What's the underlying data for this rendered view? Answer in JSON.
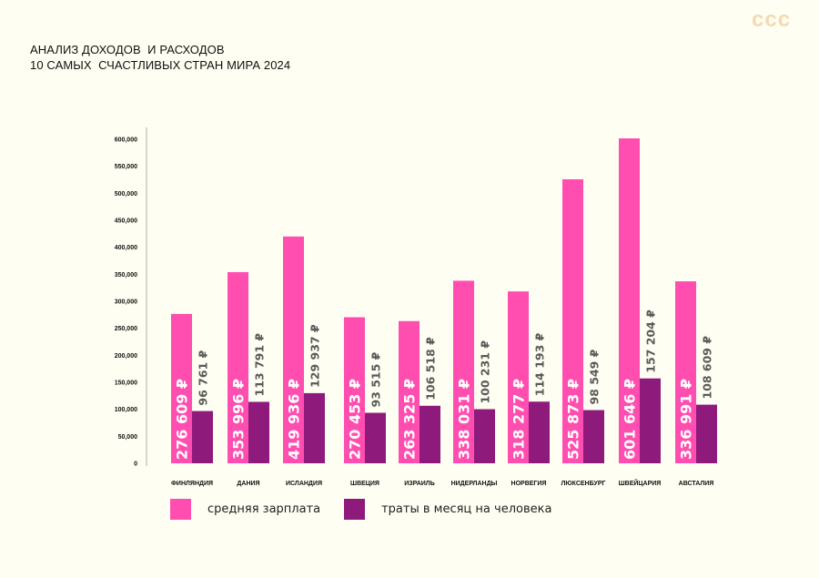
{
  "header": {
    "title_line1": "АНАЛИЗ ДОХОДОВ  И РАСХОДОВ",
    "title_line2": "10 САМЫХ  СЧАСТЛИВЫХ СТРАН МИРА 2024",
    "logo": "ccc"
  },
  "colors": {
    "salary": "#ff4db0",
    "spend": "#8e1a7c",
    "logo": "#f6d9b2",
    "background": "#fefef2"
  },
  "chart_data": {
    "type": "bar",
    "title": "АНАЛИЗ ДОХОДОВ  И РАСХОДОВ 10 САМЫХ  СЧАСТЛИВЫХ СТРАН МИРА 2024",
    "xlabel": "",
    "ylabel": "",
    "ylim": [
      0,
      600000
    ],
    "yticks": [
      0,
      50000,
      100000,
      150000,
      200000,
      250000,
      300000,
      350000,
      400000,
      450000,
      500000,
      550000,
      600000
    ],
    "ytick_labels": [
      "0",
      "50,000",
      "100,000",
      "150,000",
      "200,000",
      "250,000",
      "300,000",
      "350,000",
      "400,000",
      "450,000",
      "500,000",
      "550,000",
      "600,000"
    ],
    "grid": false,
    "legend_position": "bottom-left",
    "categories": [
      "ФИНЛЯНДИЯ",
      "ДАНИЯ",
      "ИСЛАНДИЯ",
      "ШВЕЦИЯ",
      "ИЗРАИЛЬ",
      "НИДЕРЛАНДЫ",
      "НОРВЕГИЯ",
      "ЛЮКСЕНБУРГ",
      "ШВЕЙЦАРИЯ",
      "АВСТАЛИЯ"
    ],
    "series": [
      {
        "name": "средняя зарплата",
        "values": [
          276609,
          353996,
          419936,
          270453,
          263325,
          338031,
          318277,
          525873,
          601646,
          336991
        ],
        "labels": [
          "276 609 ₽",
          "353 996 ₽",
          "419 936 ₽",
          "270 453 ₽",
          "263 325 ₽",
          "338 031 ₽",
          "318 277 ₽",
          "525 873 ₽",
          "601 646 ₽",
          "336 991 ₽"
        ]
      },
      {
        "name": "траты в месяц на человека",
        "values": [
          96761,
          113791,
          129937,
          93515,
          106518,
          100231,
          114193,
          98549,
          157204,
          108609
        ],
        "labels": [
          "96 761 ₽",
          "113 791 ₽",
          "129 937 ₽",
          "93 515 ₽",
          "106 518 ₽",
          "100 231 ₽",
          "114 193 ₽",
          "98 549 ₽",
          "157 204 ₽",
          "108 609 ₽"
        ]
      }
    ]
  }
}
